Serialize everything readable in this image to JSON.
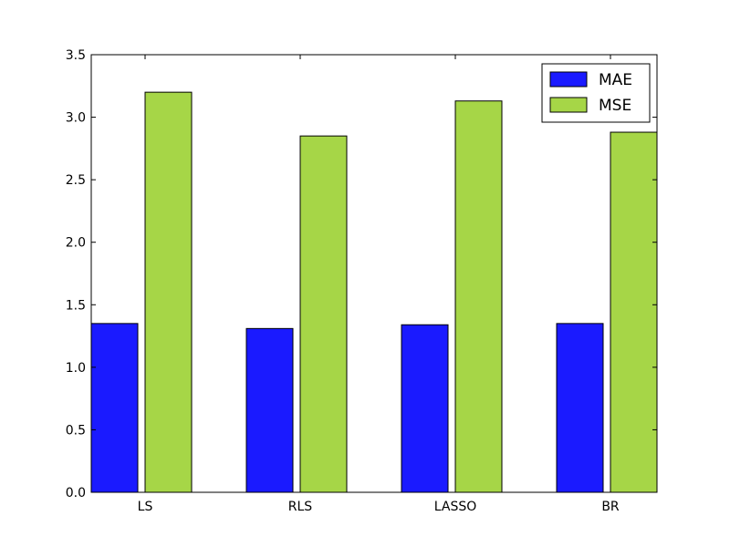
{
  "chart_data": {
    "type": "bar",
    "title": "",
    "xlabel": "",
    "ylabel": "",
    "categories": [
      "LS",
      "RLS",
      "LASSO",
      "BR"
    ],
    "series": [
      {
        "name": "MAE",
        "values": [
          1.35,
          1.31,
          1.34,
          1.35
        ],
        "color": "#1a1aff"
      },
      {
        "name": "MSE",
        "values": [
          3.2,
          2.85,
          3.13,
          2.88
        ],
        "color": "#a6d647"
      }
    ],
    "ylim": [
      0,
      3.5
    ],
    "yticks": [
      "0.0",
      "0.5",
      "1.0",
      "1.5",
      "2.0",
      "2.5",
      "3.0",
      "3.5"
    ],
    "legend_position": "top-right",
    "grid": false
  }
}
